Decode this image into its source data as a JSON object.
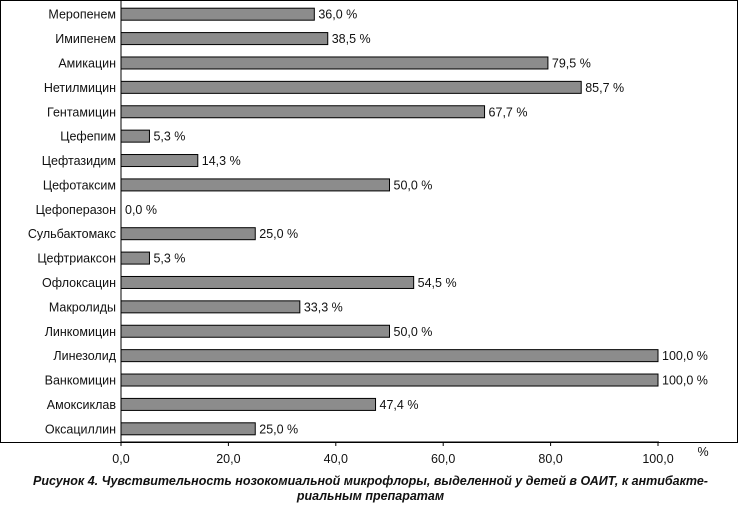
{
  "chart_data": {
    "type": "bar",
    "orientation": "horizontal",
    "categories": [
      "Меропенем",
      "Имипенем",
      "Амикацин",
      "Нетилмицин",
      "Гентамицин",
      "Цефепим",
      "Цефтазидим",
      "Цефотаксим",
      "Цефоперазон",
      "Сульбактомакс",
      "Цефтриаксон",
      "Офлоксацин",
      "Макролиды",
      "Линкомицин",
      "Линезолид",
      "Ванкомицин",
      "Амоксиклав",
      "Оксациллин"
    ],
    "values": [
      36.0,
      38.5,
      79.5,
      85.7,
      67.7,
      5.3,
      14.3,
      50.0,
      0.0,
      25.0,
      5.3,
      54.5,
      33.3,
      50.0,
      100.0,
      100.0,
      47.4,
      25.0
    ],
    "value_labels": [
      "36,0 %",
      "38,5 %",
      "79,5 %",
      "85,7 %",
      "67,7 %",
      "5,3 %",
      "14,3 %",
      "50,0 %",
      "0,0 %",
      "25,0 %",
      "5,3 %",
      "54,5 %",
      "33,3 %",
      "50,0 %",
      "100,0 %",
      "100,0 %",
      "47,4 %",
      "25,0 %"
    ],
    "xlim": [
      0,
      100
    ],
    "xticks": [
      "0,0",
      "20,0",
      "40,0",
      "60,0",
      "80,0",
      "100,0"
    ],
    "xunit": "%",
    "grid": false,
    "legend": "none",
    "bar_color": "#8c8c8c",
    "bar_edge_color": "#000000"
  },
  "caption": {
    "line1": "Рисунок 4. Чувствительность нозокомиальной микрофлоры, выделенной у детей в ОАИТ, к антибакте-",
    "line2": "риальным препаратам"
  }
}
